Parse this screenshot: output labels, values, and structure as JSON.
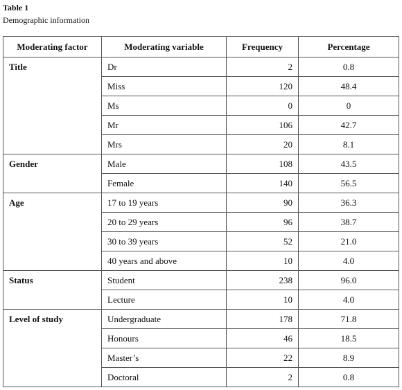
{
  "caption": {
    "label": "Table 1",
    "title": "Demographic information"
  },
  "table": {
    "header": [
      "Moderating factor",
      "Moderating variable",
      "Frequency",
      "Percentage"
    ],
    "groups": [
      {
        "factor": "Title",
        "rows": [
          [
            "Dr",
            2,
            "0.8"
          ],
          [
            "Miss",
            120,
            "48.4"
          ],
          [
            "Ms",
            0,
            "0"
          ],
          [
            "Mr",
            106,
            "42.7"
          ],
          [
            "Mrs",
            20,
            "8.1"
          ]
        ]
      },
      {
        "factor": "Gender",
        "rows": [
          [
            "Male",
            108,
            "43.5"
          ],
          [
            "Female",
            140,
            "56.5"
          ]
        ]
      },
      {
        "factor": "Age",
        "rows": [
          [
            "17 to 19 years",
            90,
            "36.3"
          ],
          [
            "20 to 29 years",
            96,
            "38.7"
          ],
          [
            "30 to 39 years",
            52,
            "21.0"
          ],
          [
            "40 years and above",
            10,
            "4.0"
          ]
        ]
      },
      {
        "factor": "Status",
        "rows": [
          [
            "Student",
            238,
            "96.0"
          ],
          [
            "Lecture",
            10,
            "4.0"
          ]
        ]
      },
      {
        "factor": "Level of study",
        "rows": [
          [
            "Undergraduate",
            178,
            "71.8"
          ],
          [
            "Honours",
            46,
            "18.5"
          ],
          [
            "Master’s",
            22,
            "8.9"
          ],
          [
            "Doctoral",
            2,
            "0.8"
          ]
        ]
      }
    ]
  }
}
